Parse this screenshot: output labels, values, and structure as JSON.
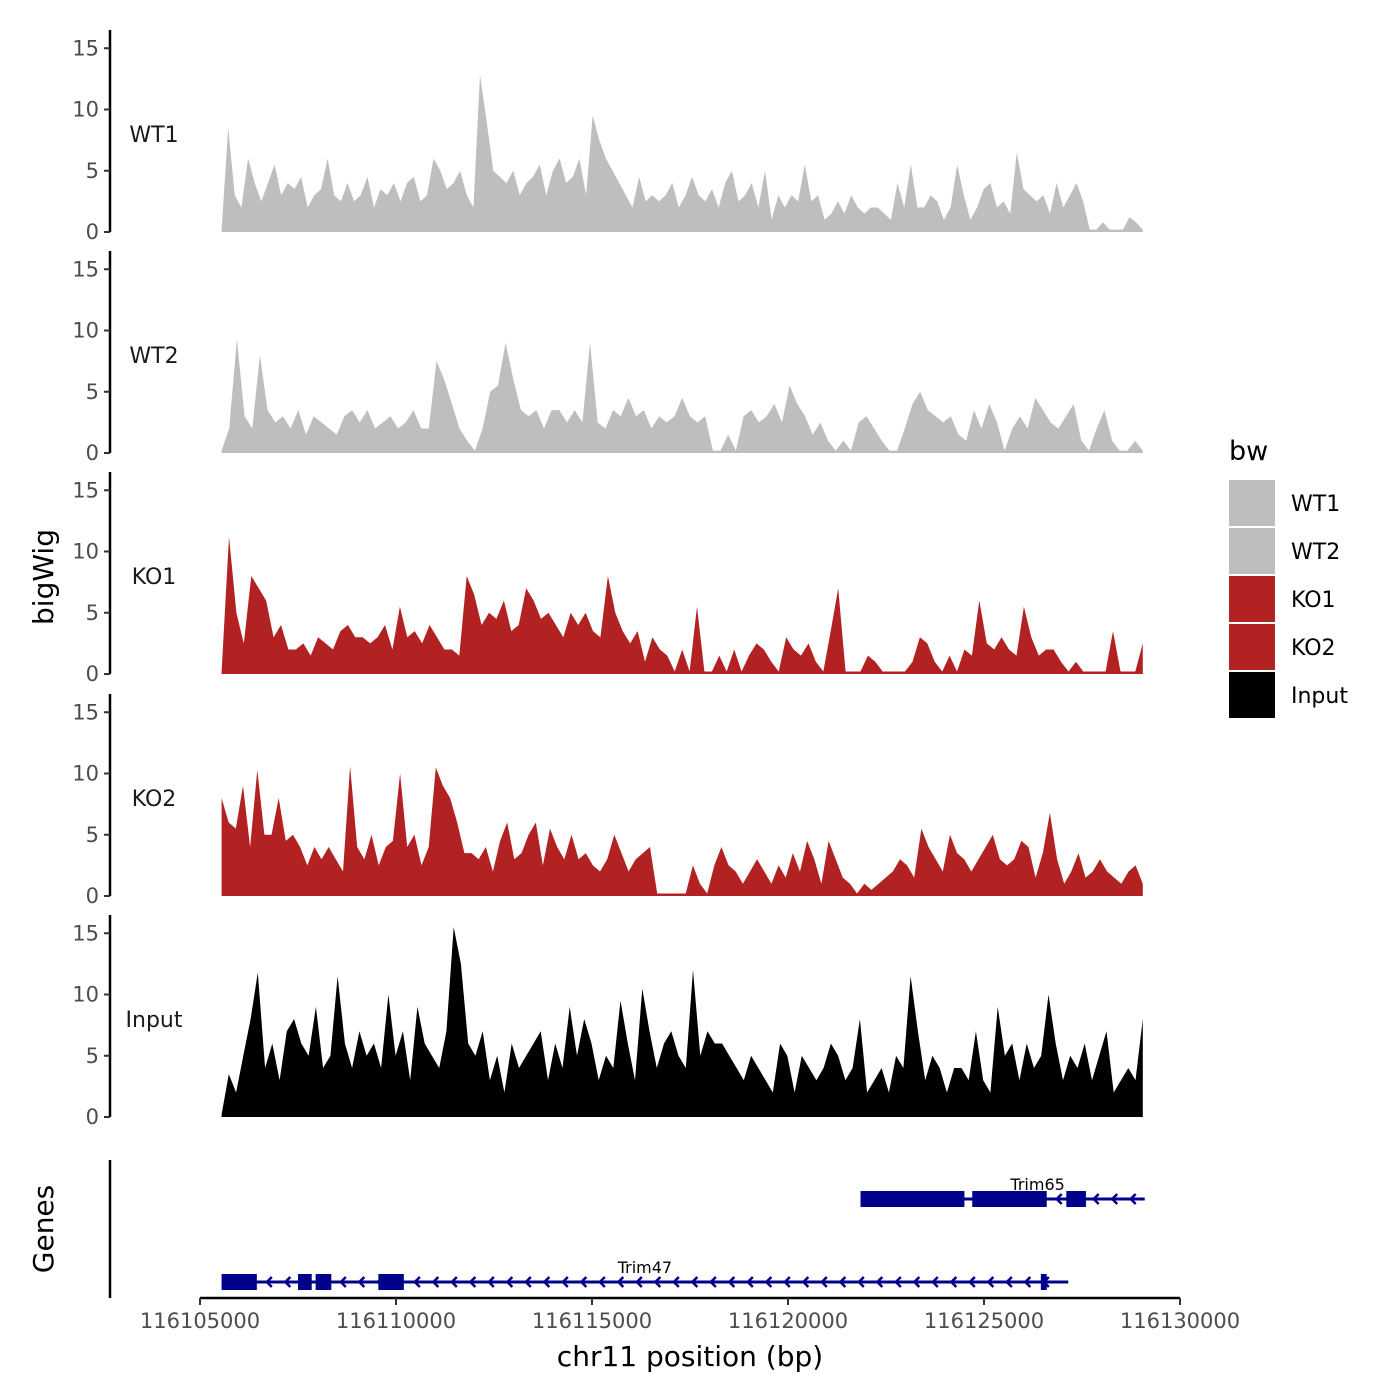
{
  "chart_data": {
    "type": "area",
    "ylabel": "bigWig",
    "genes_label": "Genes",
    "xlabel": "chr11 position (bp)",
    "x_range": [
      116105000,
      116130000
    ],
    "x_ticks": [
      116105000,
      116110000,
      116115000,
      116120000,
      116125000,
      116130000
    ],
    "x_tick_labels": [
      "116105000",
      "116110000",
      "116115000",
      "116120000",
      "116125000",
      "116130000"
    ],
    "y_range": [
      0,
      16
    ],
    "y_ticks": [
      0,
      5,
      10,
      15
    ],
    "y_tick_labels": [
      "0",
      "5",
      "10",
      "15"
    ],
    "x_start": 116105550,
    "x_end": 116129050,
    "legend_title": "bw",
    "legend": [
      {
        "name": "WT1",
        "color": "#bebebe"
      },
      {
        "name": "WT2",
        "color": "#bebebe"
      },
      {
        "name": "KO1",
        "color": "#b22222"
      },
      {
        "name": "KO2",
        "color": "#b22222"
      },
      {
        "name": "Input",
        "color": "#000000"
      }
    ],
    "series": [
      {
        "name": "WT1",
        "color": "#bebebe",
        "values": [
          0.2,
          8.5,
          3,
          2,
          6,
          4,
          2.5,
          4,
          5.5,
          3,
          4,
          3.5,
          4.5,
          2,
          3,
          3.5,
          6,
          3,
          2.5,
          4,
          2.5,
          3,
          4.5,
          2,
          3.5,
          3,
          4,
          2.5,
          4,
          4.5,
          2.5,
          3,
          6,
          5,
          3.5,
          4,
          5,
          3,
          2,
          12.8,
          9,
          5,
          4.5,
          4,
          5,
          3,
          4,
          4.5,
          5.5,
          3,
          5,
          6,
          4,
          4.5,
          6,
          3,
          9.5,
          7.5,
          6,
          5,
          4,
          3,
          2,
          4.5,
          2.5,
          3,
          2.5,
          3,
          4,
          2,
          3,
          4.5,
          3,
          2.5,
          3.5,
          2,
          4,
          5,
          2.5,
          3,
          4,
          2,
          5,
          1,
          3,
          2,
          3,
          2.5,
          5.5,
          2.5,
          3,
          1,
          1.5,
          2.5,
          1.5,
          3,
          2,
          1.5,
          2,
          2,
          1.5,
          1,
          4,
          2,
          5.5,
          2,
          2,
          3,
          2.5,
          1,
          2,
          5.5,
          3,
          1,
          2,
          3.5,
          4,
          2,
          2.5,
          1.5,
          6.5,
          3.5,
          3,
          2.5,
          3,
          1.5,
          4,
          2,
          3,
          4,
          2.5,
          0.2,
          0.2,
          0.8,
          0.2,
          0.2,
          0.2,
          1.2,
          0.8,
          0.2
        ]
      },
      {
        "name": "WT2",
        "color": "#bebebe",
        "values": [
          0.2,
          2,
          9.3,
          3,
          2,
          8,
          3.5,
          2.5,
          3,
          2,
          3.5,
          1.5,
          3,
          2.5,
          2,
          1.5,
          3,
          3.5,
          2.5,
          3.5,
          2,
          2.5,
          3,
          2,
          2.5,
          3.5,
          2,
          2,
          7.5,
          6,
          4,
          2,
          1,
          0.2,
          2,
          5,
          5.5,
          9,
          6,
          3.5,
          3,
          3.5,
          2,
          3.5,
          3.5,
          2.5,
          3.5,
          2.5,
          9,
          2.5,
          2,
          3.5,
          3,
          4.5,
          3,
          3.5,
          2,
          3,
          2.5,
          3,
          4.5,
          3,
          2.5,
          3,
          0.2,
          0.2,
          1.5,
          0.2,
          3,
          3.5,
          2.5,
          3,
          4,
          2.5,
          5.5,
          4,
          3,
          1.5,
          2.5,
          1,
          0.2,
          1,
          0.2,
          2.5,
          3,
          2,
          1,
          0.2,
          0.2,
          2,
          4,
          5,
          3.5,
          3,
          2.5,
          3,
          1.5,
          1,
          3.5,
          2,
          4,
          2.5,
          0.2,
          2,
          3,
          2,
          4.5,
          3.5,
          2.5,
          2,
          3,
          4,
          1,
          0.2,
          2,
          3.5,
          1,
          0.2,
          0.2,
          1,
          0.2
        ]
      },
      {
        "name": "KO1",
        "color": "#b22222",
        "values": [
          0.2,
          11.2,
          5,
          2.5,
          8,
          7,
          6,
          3,
          4,
          2,
          2,
          2.5,
          1.5,
          3,
          2.5,
          2,
          3.5,
          4,
          3,
          3,
          2.5,
          3,
          4,
          2,
          5.5,
          3,
          3.5,
          2.5,
          4,
          3,
          2,
          2,
          1.5,
          8,
          6.5,
          4,
          5,
          4.5,
          6,
          3.5,
          4,
          7,
          6,
          4.5,
          5,
          4,
          3,
          5,
          4,
          5,
          3.5,
          3,
          8,
          5,
          3.5,
          2.5,
          3.5,
          1,
          3,
          2,
          1.5,
          0.2,
          2,
          0.2,
          5.5,
          0.2,
          0.2,
          1.5,
          0.2,
          2,
          0.2,
          1.5,
          2.5,
          2,
          1,
          0.2,
          3,
          2,
          1.5,
          2.5,
          1,
          0.2,
          3.5,
          7,
          0.2,
          0.2,
          0.2,
          1.5,
          1,
          0.2,
          0.2,
          0.2,
          0.2,
          1,
          3,
          2.5,
          1,
          0.2,
          1.5,
          0.2,
          2,
          1.5,
          6,
          2.5,
          2,
          3,
          2,
          1.5,
          5.5,
          3,
          1.5,
          2,
          2,
          1,
          0.2,
          1,
          0.2,
          0.2,
          0.2,
          0.2,
          3.5,
          0.2,
          0.2,
          0.2,
          2.5
        ]
      },
      {
        "name": "KO2",
        "color": "#b22222",
        "values": [
          8,
          6,
          5.5,
          9,
          4,
          10.3,
          5,
          5,
          8,
          4.5,
          5,
          4,
          2.5,
          4,
          3,
          4,
          3,
          2,
          10.6,
          4,
          3,
          5,
          2.5,
          4,
          4.5,
          10,
          4,
          5,
          2.5,
          4,
          10.5,
          9,
          8,
          6,
          3.5,
          3.5,
          3,
          4,
          2,
          4.5,
          6,
          3,
          3.5,
          5,
          6,
          2.5,
          5.5,
          4,
          3,
          5,
          3,
          3.5,
          2.5,
          2,
          3,
          5,
          3.5,
          2,
          3,
          3.5,
          4,
          0.2,
          0.2,
          0.2,
          0.2,
          0.2,
          2.5,
          1,
          0.2,
          2.5,
          4,
          2.5,
          2,
          1,
          2,
          3,
          2,
          1,
          2.5,
          1.5,
          3.5,
          2,
          4.5,
          3,
          1,
          4.5,
          3,
          1.5,
          1,
          0.2,
          1,
          0.5,
          1,
          1.5,
          2,
          3,
          2.5,
          1.5,
          5.5,
          4,
          3,
          2,
          5,
          3.5,
          3,
          2,
          3,
          4,
          5,
          3,
          2.5,
          3,
          4.5,
          4,
          1.5,
          3.5,
          6.8,
          3,
          1,
          2,
          3.5,
          1.5,
          2,
          3,
          2,
          1.5,
          1,
          2,
          2.5,
          1
        ]
      },
      {
        "name": "Input",
        "color": "#000000",
        "values": [
          0.2,
          3.5,
          2,
          5,
          8,
          11.8,
          4,
          6,
          3,
          7,
          8,
          6,
          5,
          9,
          4,
          5,
          11.5,
          6,
          4,
          7,
          5,
          6,
          4,
          10,
          5,
          7,
          3,
          9,
          6,
          5,
          4,
          7,
          15.5,
          12.5,
          6,
          5,
          7,
          3,
          5,
          2,
          6,
          4,
          5,
          6,
          7,
          3,
          6,
          4,
          9,
          5,
          8,
          6,
          3,
          5,
          4,
          9.5,
          6,
          3,
          10.5,
          7,
          4,
          6,
          7,
          5,
          4,
          12,
          5,
          7,
          6,
          6,
          5,
          4,
          3,
          5,
          4,
          3,
          2,
          6,
          5,
          2,
          5,
          4,
          3,
          4,
          6,
          5,
          3,
          4,
          8,
          2,
          3,
          4,
          2,
          5,
          4,
          11.5,
          7,
          3,
          5,
          4,
          2,
          4,
          4,
          3,
          7,
          3,
          2,
          9,
          5,
          6,
          3,
          6,
          4,
          5,
          10,
          6,
          3,
          5,
          4,
          6,
          3,
          5,
          7,
          2,
          3,
          4,
          3,
          8
        ]
      }
    ],
    "genes": [
      {
        "name": "Trim65",
        "start": 116121850,
        "end": 116129100,
        "strand": "-",
        "exons": [
          [
            116121850,
            116124500
          ],
          [
            116124700,
            116126600
          ],
          [
            116127100,
            116127600
          ]
        ],
        "arrows_from": 116126600
      },
      {
        "name": "Trim47",
        "start": 116105550,
        "end": 116127150,
        "strand": "-",
        "exons": [
          [
            116105550,
            116106450
          ],
          [
            116107500,
            116107850
          ],
          [
            116107950,
            116108350
          ],
          [
            116109550,
            116110200
          ],
          [
            116126450,
            116126600
          ]
        ],
        "arrows_from": 116106450
      }
    ]
  }
}
